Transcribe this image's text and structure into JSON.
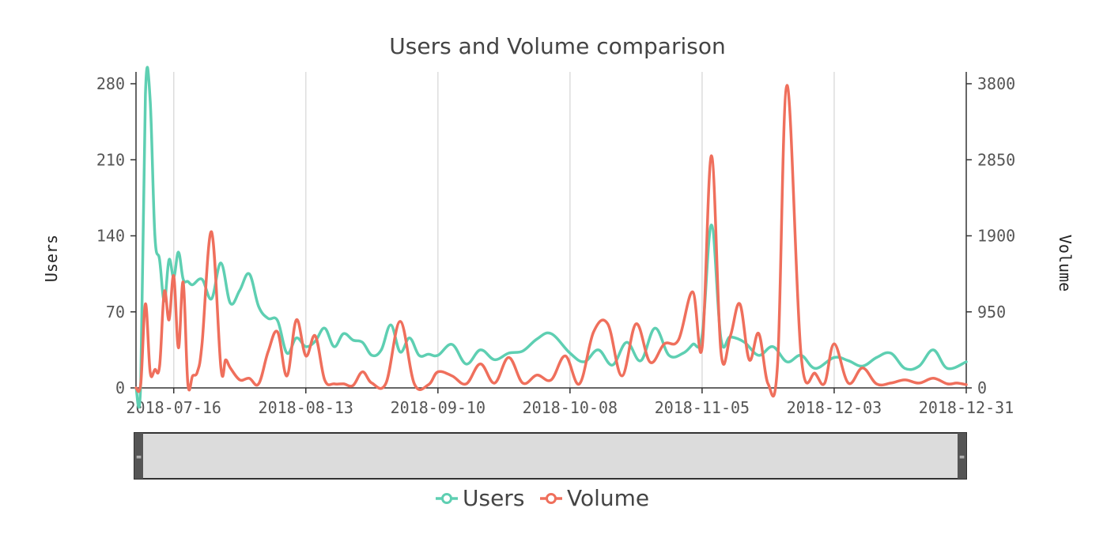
{
  "chart_data": {
    "type": "line",
    "title": "Users and Volume comparison",
    "ylabel_left": "Users",
    "ylabel_right": "Volume",
    "x_ticks": [
      "2018-07-16",
      "2018-08-13",
      "2018-09-10",
      "2018-10-08",
      "2018-11-05",
      "2018-12-03",
      "2018-12-31"
    ],
    "y_left_ticks": [
      "0",
      "70",
      "140",
      "210",
      "280"
    ],
    "y_right_ticks": [
      "0",
      "950",
      "1900",
      "2850",
      "3800"
    ],
    "y_left_range": [
      0,
      280
    ],
    "y_right_range": [
      0,
      3800
    ],
    "x_range": [
      "2018-07-08",
      "2018-12-31"
    ],
    "grid": "vertical",
    "legend_position": "bottom-center",
    "colors": {
      "users": "#5ecfb2",
      "volume": "#ef6f5c",
      "navigator_fill": "#dcdcdc",
      "navigator_handle": "#555555"
    },
    "series": [
      {
        "name": "Users",
        "axis": "left",
        "x": [
          "2018-07-08",
          "2018-07-09",
          "2018-07-10",
          "2018-07-11",
          "2018-07-12",
          "2018-07-13",
          "2018-07-14",
          "2018-07-15",
          "2018-07-16",
          "2018-07-17",
          "2018-07-18",
          "2018-07-19",
          "2018-07-20",
          "2018-07-22",
          "2018-07-24",
          "2018-07-26",
          "2018-07-28",
          "2018-07-30",
          "2018-08-01",
          "2018-08-03",
          "2018-08-05",
          "2018-08-07",
          "2018-08-09",
          "2018-08-11",
          "2018-08-13",
          "2018-08-15",
          "2018-08-17",
          "2018-08-19",
          "2018-08-21",
          "2018-08-23",
          "2018-08-25",
          "2018-08-27",
          "2018-08-29",
          "2018-08-31",
          "2018-09-02",
          "2018-09-04",
          "2018-09-06",
          "2018-09-08",
          "2018-09-10",
          "2018-09-13",
          "2018-09-16",
          "2018-09-19",
          "2018-09-22",
          "2018-09-25",
          "2018-09-28",
          "2018-10-01",
          "2018-10-04",
          "2018-10-08",
          "2018-10-11",
          "2018-10-14",
          "2018-10-17",
          "2018-10-20",
          "2018-10-23",
          "2018-10-26",
          "2018-10-29",
          "2018-11-01",
          "2018-11-03",
          "2018-11-05",
          "2018-11-07",
          "2018-11-09",
          "2018-11-11",
          "2018-11-14",
          "2018-11-17",
          "2018-11-20",
          "2018-11-23",
          "2018-11-26",
          "2018-11-29",
          "2018-12-03",
          "2018-12-06",
          "2018-12-09",
          "2018-12-12",
          "2018-12-15",
          "2018-12-18",
          "2018-12-21",
          "2018-12-24",
          "2018-12-27",
          "2018-12-31"
        ],
        "values": [
          0,
          5,
          270,
          265,
          140,
          118,
          80,
          118,
          102,
          125,
          100,
          98,
          95,
          100,
          82,
          115,
          78,
          90,
          105,
          75,
          64,
          62,
          32,
          46,
          38,
          43,
          55,
          38,
          50,
          44,
          42,
          30,
          35,
          58,
          33,
          46,
          30,
          31,
          30,
          40,
          22,
          35,
          26,
          32,
          34,
          45,
          50,
          32,
          24,
          35,
          21,
          42,
          25,
          55,
          30,
          32,
          40,
          48,
          150,
          45,
          47,
          42,
          30,
          38,
          24,
          30,
          18,
          28,
          25,
          20,
          28,
          32,
          18,
          20,
          35,
          18,
          24
        ]
      },
      {
        "name": "Volume",
        "axis": "right",
        "x": [
          "2018-07-08",
          "2018-07-09",
          "2018-07-10",
          "2018-07-11",
          "2018-07-12",
          "2018-07-13",
          "2018-07-14",
          "2018-07-15",
          "2018-07-16",
          "2018-07-17",
          "2018-07-18",
          "2018-07-19",
          "2018-07-20",
          "2018-07-21",
          "2018-07-22",
          "2018-07-24",
          "2018-07-26",
          "2018-07-27",
          "2018-07-28",
          "2018-07-30",
          "2018-08-01",
          "2018-08-03",
          "2018-08-05",
          "2018-08-07",
          "2018-08-09",
          "2018-08-11",
          "2018-08-13",
          "2018-08-15",
          "2018-08-17",
          "2018-08-19",
          "2018-08-21",
          "2018-08-23",
          "2018-08-25",
          "2018-08-27",
          "2018-08-30",
          "2018-09-02",
          "2018-09-05",
          "2018-09-08",
          "2018-09-10",
          "2018-09-13",
          "2018-09-16",
          "2018-09-19",
          "2018-09-22",
          "2018-09-25",
          "2018-09-28",
          "2018-10-01",
          "2018-10-04",
          "2018-10-07",
          "2018-10-10",
          "2018-10-13",
          "2018-10-16",
          "2018-10-19",
          "2018-10-22",
          "2018-10-25",
          "2018-10-28",
          "2018-10-31",
          "2018-11-03",
          "2018-11-05",
          "2018-11-07",
          "2018-11-09",
          "2018-11-11",
          "2018-11-13",
          "2018-11-15",
          "2018-11-17",
          "2018-11-19",
          "2018-11-21",
          "2018-11-23",
          "2018-11-26",
          "2018-11-29",
          "2018-12-01",
          "2018-12-03",
          "2018-12-06",
          "2018-12-09",
          "2018-12-12",
          "2018-12-15",
          "2018-12-18",
          "2018-12-21",
          "2018-12-24",
          "2018-12-27",
          "2018-12-29",
          "2018-12-31"
        ],
        "values": [
          0,
          50,
          1050,
          200,
          230,
          270,
          1200,
          850,
          1400,
          500,
          1320,
          50,
          150,
          200,
          550,
          1950,
          250,
          350,
          250,
          100,
          120,
          50,
          450,
          700,
          150,
          850,
          400,
          650,
          100,
          50,
          50,
          30,
          200,
          60,
          60,
          830,
          50,
          40,
          200,
          150,
          50,
          300,
          60,
          380,
          60,
          160,
          100,
          400,
          50,
          700,
          800,
          150,
          800,
          320,
          550,
          600,
          1200,
          500,
          2900,
          450,
          650,
          1050,
          350,
          680,
          50,
          300,
          3780,
          400,
          180,
          60,
          550,
          60,
          250,
          50,
          60,
          100,
          60,
          120,
          50,
          60,
          40
        ]
      }
    ]
  },
  "legend": {
    "items": [
      {
        "label": "Users",
        "color": "#5ecfb2"
      },
      {
        "label": "Volume",
        "color": "#ef6f5c"
      }
    ]
  },
  "navigator": {
    "handle_glyph": "="
  }
}
